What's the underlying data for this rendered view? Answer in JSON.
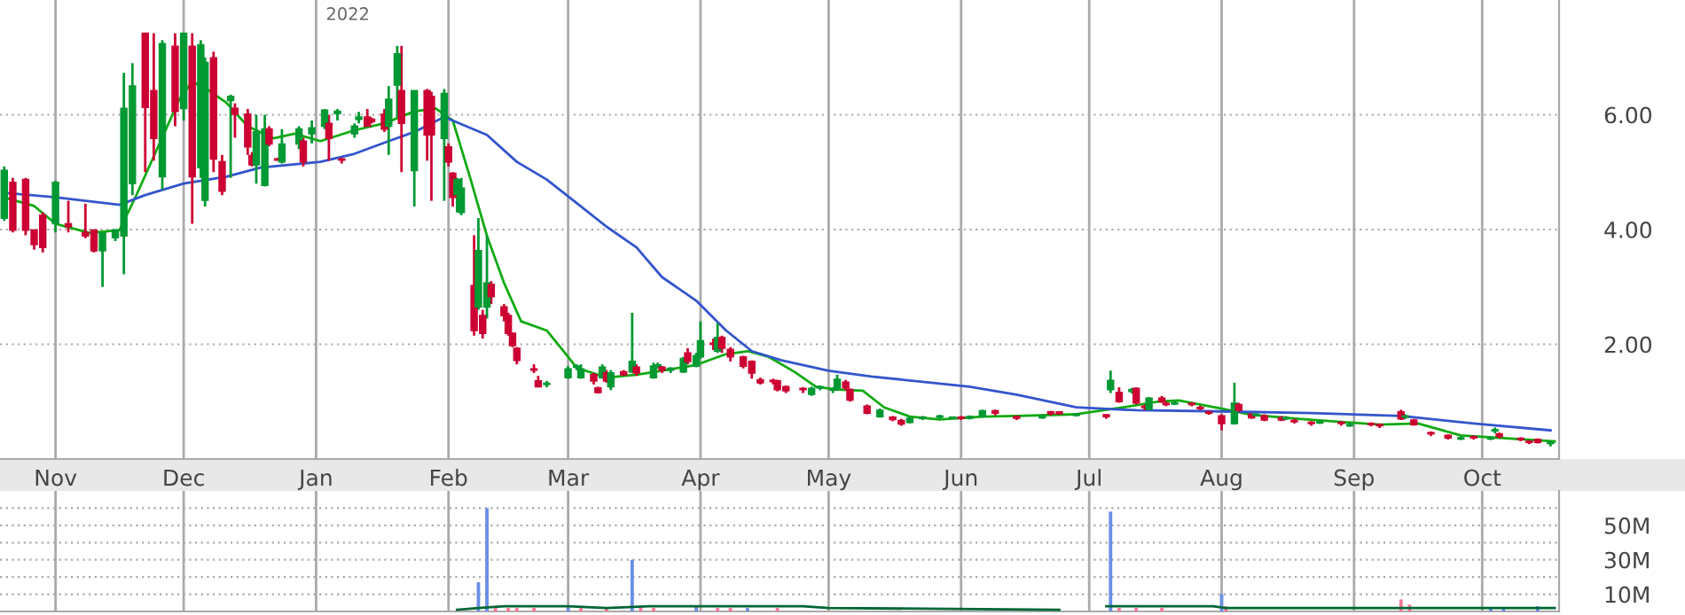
{
  "chart_data": [
    {
      "type": "candlestick",
      "annotations": [
        "2022"
      ],
      "xlim": [
        "2021-10-19",
        "2022-10-19"
      ],
      "xticks": [
        {
          "value": "2021-11-01",
          "label": "Nov"
        },
        {
          "value": "2021-12-01",
          "label": "Dec"
        },
        {
          "value": "2022-01-01",
          "label": "Jan"
        },
        {
          "value": "2022-02-01",
          "label": "Feb"
        },
        {
          "value": "2022-03-01",
          "label": "Mar"
        },
        {
          "value": "2022-04-01",
          "label": "Apr"
        },
        {
          "value": "2022-05-01",
          "label": "May"
        },
        {
          "value": "2022-06-01",
          "label": "Jun"
        },
        {
          "value": "2022-07-01",
          "label": "Jul"
        },
        {
          "value": "2022-08-01",
          "label": "Aug"
        },
        {
          "value": "2022-09-01",
          "label": "Sep"
        },
        {
          "value": "2022-10-01",
          "label": "Oct"
        }
      ],
      "ylim": [
        0,
        8
      ],
      "yticks": [
        {
          "value": 2,
          "label": "2.00"
        },
        {
          "value": 4,
          "label": "4.00"
        },
        {
          "value": 6,
          "label": "6.00"
        }
      ],
      "grid": true,
      "x": [
        "2021-10-20",
        "2021-10-22",
        "2021-10-25",
        "2021-10-27",
        "2021-10-29",
        "2021-11-01",
        "2021-11-04",
        "2021-11-08",
        "2021-11-10",
        "2021-11-12",
        "2021-11-15",
        "2021-11-17",
        "2021-11-19",
        "2021-11-22",
        "2021-11-24",
        "2021-11-26",
        "2021-11-29",
        "2021-12-01",
        "2021-12-03",
        "2021-12-05",
        "2021-12-06",
        "2021-12-08",
        "2021-12-10",
        "2021-12-12",
        "2021-12-13",
        "2021-12-16",
        "2021-12-17",
        "2021-12-18",
        "2021-12-20",
        "2021-12-21",
        "2021-12-23",
        "2021-12-24",
        "2021-12-28",
        "2021-12-29",
        "2021-12-31",
        "2022-01-03",
        "2022-01-04",
        "2022-01-06",
        "2022-01-07",
        "2022-01-10",
        "2022-01-11",
        "2022-01-13",
        "2022-01-14",
        "2022-01-17",
        "2022-01-18",
        "2022-01-20",
        "2022-01-21",
        "2022-01-24",
        "2022-01-27",
        "2022-01-28",
        "2022-01-31",
        "2022-02-01",
        "2022-02-02",
        "2022-02-03",
        "2022-02-04",
        "2022-02-07",
        "2022-02-08",
        "2022-02-09",
        "2022-02-10",
        "2022-02-11",
        "2022-02-14",
        "2022-02-15",
        "2022-02-16",
        "2022-02-17",
        "2022-02-21",
        "2022-02-22",
        "2022-02-24",
        "2022-03-01",
        "2022-03-03",
        "2022-03-04",
        "2022-03-07",
        "2022-03-08",
        "2022-03-09",
        "2022-03-10",
        "2022-03-11",
        "2022-03-14",
        "2022-03-16",
        "2022-03-17",
        "2022-03-21",
        "2022-03-22",
        "2022-03-23",
        "2022-03-25",
        "2022-03-28",
        "2022-03-29",
        "2022-03-31",
        "2022-04-01",
        "2022-04-04",
        "2022-04-05",
        "2022-04-06",
        "2022-04-08",
        "2022-04-11",
        "2022-04-13",
        "2022-04-15",
        "2022-04-18",
        "2022-04-19",
        "2022-04-21",
        "2022-04-25",
        "2022-04-27",
        "2022-04-29",
        "2022-05-02",
        "2022-05-03",
        "2022-05-05",
        "2022-05-06",
        "2022-05-10",
        "2022-05-13",
        "2022-05-16",
        "2022-05-18",
        "2022-05-20",
        "2022-05-23",
        "2022-05-27",
        "2022-05-30",
        "2022-06-01",
        "2022-06-03",
        "2022-06-06",
        "2022-06-09",
        "2022-06-14",
        "2022-06-20",
        "2022-06-22",
        "2022-06-24",
        "2022-06-28",
        "2022-07-05",
        "2022-07-06",
        "2022-07-08",
        "2022-07-11",
        "2022-07-12",
        "2022-07-14",
        "2022-07-15",
        "2022-07-18",
        "2022-07-19",
        "2022-07-21",
        "2022-07-25",
        "2022-07-27",
        "2022-07-29",
        "2022-08-01",
        "2022-08-04",
        "2022-08-05",
        "2022-08-08",
        "2022-08-09",
        "2022-08-11",
        "2022-08-15",
        "2022-08-16",
        "2022-08-18",
        "2022-08-22",
        "2022-08-24",
        "2022-08-29",
        "2022-08-31",
        "2022-09-05",
        "2022-09-07",
        "2022-09-12",
        "2022-09-13",
        "2022-09-15",
        "2022-09-19",
        "2022-09-23",
        "2022-09-26",
        "2022-09-29",
        "2022-10-03",
        "2022-10-04",
        "2022-10-05",
        "2022-10-10",
        "2022-10-12",
        "2022-10-14",
        "2022-10-17"
      ],
      "ohlc": [
        [
          4.2,
          5.1,
          4.15,
          5.03
        ],
        [
          4.82,
          4.9,
          3.95,
          3.99
        ],
        [
          4.87,
          4.9,
          3.9,
          3.99
        ],
        [
          3.99,
          4.0,
          3.65,
          3.74
        ],
        [
          4.25,
          4.3,
          3.6,
          3.69
        ],
        [
          4.1,
          4.85,
          3.95,
          4.82
        ],
        [
          4.1,
          4.5,
          3.95,
          4.05
        ],
        [
          3.95,
          4.45,
          3.85,
          3.89
        ],
        [
          3.99,
          4.0,
          3.6,
          3.63
        ],
        [
          3.63,
          3.95,
          3.0,
          3.94
        ],
        [
          3.86,
          4.0,
          3.8,
          3.99
        ],
        [
          3.89,
          6.73,
          3.22,
          6.11
        ],
        [
          4.8,
          6.9,
          4.6,
          6.5
        ],
        [
          7.42,
          7.42,
          5.0,
          6.13
        ],
        [
          6.42,
          7.42,
          5.2,
          5.59
        ],
        [
          4.92,
          7.3,
          4.7,
          7.24
        ],
        [
          7.19,
          7.42,
          5.8,
          6.06
        ],
        [
          6.11,
          7.42,
          5.9,
          7.42
        ],
        [
          7.19,
          7.42,
          4.1,
          4.92
        ],
        [
          5.08,
          7.3,
          4.9,
          7.22
        ],
        [
          4.51,
          7.0,
          4.4,
          6.91
        ],
        [
          6.99,
          7.1,
          5.0,
          5.23
        ],
        [
          5.18,
          5.3,
          4.6,
          4.67
        ],
        [
          6.25,
          6.35,
          4.9,
          6.32
        ],
        [
          6.11,
          6.2,
          5.6,
          6.01
        ],
        [
          6.01,
          6.1,
          5.3,
          5.44
        ],
        [
          5.29,
          5.35,
          5.1,
          5.13
        ],
        [
          5.13,
          6.0,
          4.8,
          5.7
        ],
        [
          4.77,
          6.0,
          4.75,
          5.75
        ],
        [
          5.75,
          5.8,
          5.45,
          5.49
        ],
        [
          5.22,
          5.25,
          5.2,
          5.21
        ],
        [
          5.18,
          5.75,
          5.15,
          5.49
        ],
        [
          5.49,
          5.8,
          5.4,
          5.75
        ],
        [
          5.54,
          5.6,
          5.1,
          5.18
        ],
        [
          5.67,
          5.9,
          5.5,
          5.77
        ],
        [
          5.8,
          6.1,
          5.75,
          6.08
        ],
        [
          5.85,
          6.0,
          5.2,
          5.59
        ],
        [
          6.02,
          6.1,
          5.9,
          6.06
        ],
        [
          5.23,
          5.25,
          5.15,
          5.21
        ],
        [
          5.67,
          5.85,
          5.6,
          5.8
        ],
        [
          5.92,
          6.05,
          5.85,
          5.96
        ],
        [
          5.96,
          6.1,
          5.8,
          5.8
        ],
        [
          5.92,
          5.95,
          5.85,
          5.88
        ],
        [
          6.01,
          6.1,
          5.7,
          5.75
        ],
        [
          5.8,
          6.5,
          5.3,
          6.27
        ],
        [
          6.52,
          7.2,
          5.95,
          7.06
        ],
        [
          6.42,
          7.2,
          5.0,
          5.85
        ],
        [
          5.03,
          6.42,
          4.4,
          6.42
        ],
        [
          6.42,
          6.45,
          5.2,
          5.65
        ],
        [
          6.32,
          6.4,
          4.5,
          5.65
        ],
        [
          5.59,
          6.45,
          4.5,
          6.37
        ],
        [
          5.44,
          5.5,
          5.1,
          5.18
        ],
        [
          4.98,
          5.0,
          4.4,
          4.56
        ],
        [
          4.61,
          4.9,
          4.3,
          4.87
        ],
        [
          4.3,
          4.9,
          4.25,
          4.72
        ],
        [
          3.02,
          3.9,
          2.15,
          2.24
        ],
        [
          2.65,
          4.2,
          2.6,
          3.63
        ],
        [
          2.5,
          2.6,
          2.1,
          2.19
        ],
        [
          2.65,
          3.9,
          2.45,
          3.07
        ],
        [
          3.04,
          3.1,
          2.7,
          2.83
        ],
        [
          2.65,
          2.7,
          2.4,
          2.5
        ],
        [
          2.5,
          2.55,
          2.15,
          2.19
        ],
        [
          2.19,
          2.2,
          1.95,
          1.98
        ],
        [
          1.93,
          1.95,
          1.65,
          1.72
        ],
        [
          1.57,
          1.65,
          1.5,
          1.55
        ],
        [
          1.36,
          1.45,
          1.25,
          1.26
        ],
        [
          1.3,
          1.36,
          1.25,
          1.32
        ],
        [
          1.42,
          1.62,
          1.4,
          1.57
        ],
        [
          1.6,
          1.65,
          1.55,
          1.62
        ],
        [
          1.42,
          1.65,
          1.4,
          1.57
        ],
        [
          1.47,
          1.5,
          1.3,
          1.36
        ],
        [
          1.24,
          1.26,
          1.14,
          1.16
        ],
        [
          1.42,
          1.65,
          1.4,
          1.6
        ],
        [
          1.5,
          1.55,
          1.33,
          1.36
        ],
        [
          1.26,
          1.55,
          1.2,
          1.5
        ],
        [
          1.52,
          1.55,
          1.45,
          1.47
        ],
        [
          1.52,
          2.55,
          1.5,
          1.7
        ],
        [
          1.6,
          1.65,
          1.45,
          1.5
        ],
        [
          1.42,
          1.68,
          1.4,
          1.62
        ],
        [
          1.6,
          1.68,
          1.58,
          1.64
        ],
        [
          1.6,
          1.62,
          1.5,
          1.55
        ],
        [
          1.55,
          1.6,
          1.5,
          1.58
        ],
        [
          1.52,
          1.78,
          1.5,
          1.75
        ],
        [
          1.85,
          1.93,
          1.65,
          1.7
        ],
        [
          1.62,
          1.85,
          1.6,
          1.8
        ],
        [
          1.78,
          2.4,
          1.75,
          2.06
        ],
        [
          2.02,
          2.1,
          1.9,
          2.0
        ],
        [
          1.88,
          2.37,
          1.85,
          2.12
        ],
        [
          2.12,
          2.15,
          1.85,
          1.93
        ],
        [
          1.91,
          1.95,
          1.7,
          1.78
        ],
        [
          1.78,
          1.8,
          1.58,
          1.62
        ],
        [
          1.7,
          1.72,
          1.4,
          1.5
        ],
        [
          1.38,
          1.42,
          1.3,
          1.33
        ],
        [
          1.37,
          1.4,
          1.3,
          1.35
        ],
        [
          1.36,
          1.38,
          1.18,
          1.21
        ],
        [
          1.26,
          1.28,
          1.15,
          1.19
        ],
        [
          1.22,
          1.25,
          1.15,
          1.21
        ],
        [
          1.13,
          1.26,
          1.1,
          1.23
        ],
        [
          1.24,
          1.28,
          1.2,
          1.25
        ],
        [
          1.2,
          1.25,
          1.15,
          1.22
        ],
        [
          1.23,
          1.47,
          1.2,
          1.39
        ],
        [
          1.34,
          1.38,
          1.2,
          1.24
        ],
        [
          1.21,
          1.23,
          1.0,
          1.03
        ],
        [
          0.92,
          0.95,
          0.78,
          0.8
        ],
        [
          0.74,
          0.88,
          0.72,
          0.85
        ],
        [
          0.73,
          0.75,
          0.66,
          0.69
        ],
        [
          0.67,
          0.7,
          0.58,
          0.61
        ],
        [
          0.64,
          0.73,
          0.62,
          0.71
        ],
        [
          0.71,
          0.75,
          0.68,
          0.73
        ],
        [
          0.73,
          0.77,
          0.7,
          0.75
        ],
        [
          0.71,
          0.74,
          0.69,
          0.73
        ],
        [
          0.73,
          0.75,
          0.68,
          0.71
        ],
        [
          0.71,
          0.76,
          0.69,
          0.74
        ],
        [
          0.74,
          0.86,
          0.72,
          0.84
        ],
        [
          0.84,
          0.86,
          0.76,
          0.8
        ],
        [
          0.74,
          0.76,
          0.68,
          0.71
        ],
        [
          0.72,
          0.78,
          0.7,
          0.75
        ],
        [
          0.82,
          0.84,
          0.76,
          0.79
        ],
        [
          0.82,
          0.83,
          0.77,
          0.79
        ],
        [
          0.76,
          0.8,
          0.74,
          0.79
        ],
        [
          0.77,
          0.78,
          0.7,
          0.74
        ],
        [
          1.21,
          1.54,
          1.15,
          1.37
        ],
        [
          1.16,
          1.25,
          0.98,
          1.0
        ],
        [
          1.18,
          1.24,
          1.14,
          1.21
        ],
        [
          1.23,
          1.25,
          0.95,
          0.98
        ],
        [
          0.91,
          0.95,
          0.85,
          0.9
        ],
        [
          0.87,
          1.08,
          0.85,
          1.06
        ],
        [
          1.06,
          1.1,
          0.98,
          1.0
        ],
        [
          0.97,
          1.0,
          0.92,
          0.95
        ],
        [
          0.96,
          1.02,
          0.94,
          0.98
        ],
        [
          0.97,
          0.99,
          0.92,
          0.95
        ],
        [
          0.9,
          0.93,
          0.85,
          0.88
        ],
        [
          0.82,
          0.84,
          0.77,
          0.8
        ],
        [
          0.75,
          0.78,
          0.5,
          0.62
        ],
        [
          0.62,
          1.33,
          0.6,
          0.97
        ],
        [
          0.95,
          0.98,
          0.82,
          0.85
        ],
        [
          0.78,
          0.8,
          0.7,
          0.72
        ],
        [
          0.76,
          0.8,
          0.74,
          0.78
        ],
        [
          0.75,
          0.78,
          0.66,
          0.68
        ],
        [
          0.72,
          0.75,
          0.66,
          0.68
        ],
        [
          0.7,
          0.75,
          0.68,
          0.72
        ],
        [
          0.67,
          0.7,
          0.62,
          0.65
        ],
        [
          0.64,
          0.66,
          0.58,
          0.62
        ],
        [
          0.63,
          0.68,
          0.61,
          0.65
        ],
        [
          0.64,
          0.66,
          0.58,
          0.62
        ],
        [
          0.58,
          0.64,
          0.56,
          0.6
        ],
        [
          0.62,
          0.64,
          0.57,
          0.6
        ],
        [
          0.6,
          0.62,
          0.54,
          0.58
        ],
        [
          0.82,
          0.86,
          0.68,
          0.7
        ],
        [
          0.73,
          0.78,
          0.7,
          0.75
        ],
        [
          0.68,
          0.7,
          0.58,
          0.6
        ],
        [
          0.46,
          0.48,
          0.4,
          0.44
        ],
        [
          0.41,
          0.43,
          0.34,
          0.37
        ],
        [
          0.35,
          0.4,
          0.33,
          0.37
        ],
        [
          0.39,
          0.41,
          0.34,
          0.37
        ],
        [
          0.35,
          0.4,
          0.33,
          0.37
        ],
        [
          0.49,
          0.55,
          0.45,
          0.5
        ],
        [
          0.44,
          0.46,
          0.36,
          0.39
        ],
        [
          0.36,
          0.38,
          0.31,
          0.34
        ],
        [
          0.31,
          0.33,
          0.26,
          0.29
        ],
        [
          0.34,
          0.36,
          0.27,
          0.29
        ],
        [
          0.27,
          0.32,
          0.22,
          0.29
        ]
      ],
      "series": [
        {
          "type": "line",
          "color": "#11aa11",
          "x": [
            "2021-10-20",
            "2021-10-27",
            "2021-11-01",
            "2021-11-09",
            "2021-11-16",
            "2021-11-20",
            "2021-11-25",
            "2021-11-30",
            "2021-12-03",
            "2021-12-07",
            "2021-12-11",
            "2021-12-16",
            "2021-12-22",
            "2021-12-27",
            "2022-01-02",
            "2022-01-10",
            "2022-01-17",
            "2022-01-24",
            "2022-01-29",
            "2022-02-02",
            "2022-02-06",
            "2022-02-10",
            "2022-02-14",
            "2022-02-18",
            "2022-02-24",
            "2022-03-01",
            "2022-03-03",
            "2022-03-10",
            "2022-03-17",
            "2022-03-23",
            "2022-03-31",
            "2022-04-07",
            "2022-04-12",
            "2022-04-17",
            "2022-04-23",
            "2022-04-28",
            "2022-05-03",
            "2022-05-09",
            "2022-05-14",
            "2022-05-20",
            "2022-05-27",
            "2022-06-06",
            "2022-06-14",
            "2022-06-28",
            "2022-07-09",
            "2022-07-17",
            "2022-07-22",
            "2022-08-01",
            "2022-08-08",
            "2022-08-19",
            "2022-09-07",
            "2022-09-16",
            "2022-09-26",
            "2022-10-05",
            "2022-10-18"
          ],
          "values": [
            4.56,
            4.41,
            4.1,
            3.94,
            3.99,
            4.61,
            5.44,
            6.27,
            6.58,
            6.42,
            6.21,
            5.8,
            5.59,
            5.67,
            5.54,
            5.73,
            5.85,
            6.06,
            6.11,
            5.9,
            4.92,
            3.89,
            3.07,
            2.4,
            2.24,
            1.78,
            1.59,
            1.42,
            1.47,
            1.54,
            1.64,
            1.83,
            1.88,
            1.78,
            1.52,
            1.26,
            1.21,
            1.19,
            0.9,
            0.74,
            0.69,
            0.74,
            0.75,
            0.78,
            0.9,
            1.0,
            1.02,
            0.88,
            0.77,
            0.7,
            0.6,
            0.62,
            0.41,
            0.37,
            0.31
          ]
        },
        {
          "type": "line",
          "color": "#3355cc",
          "x": [
            "2021-10-20",
            "2021-11-01",
            "2021-11-16",
            "2021-11-22",
            "2021-12-01",
            "2021-12-11",
            "2021-12-19",
            "2022-01-02",
            "2022-01-10",
            "2022-01-18",
            "2022-01-24",
            "2022-01-31",
            "2022-02-10",
            "2022-02-17",
            "2022-02-24",
            "2022-03-03",
            "2022-03-10",
            "2022-03-17",
            "2022-03-23",
            "2022-03-31",
            "2022-04-07",
            "2022-04-13",
            "2022-04-20",
            "2022-05-01",
            "2022-05-11",
            "2022-05-25",
            "2022-06-03",
            "2022-06-14",
            "2022-06-28",
            "2022-07-12",
            "2022-08-01",
            "2022-08-22",
            "2022-09-12",
            "2022-09-29",
            "2022-10-17"
          ],
          "values": [
            4.64,
            4.56,
            4.43,
            4.6,
            4.8,
            4.92,
            5.08,
            5.18,
            5.32,
            5.54,
            5.7,
            5.96,
            5.65,
            5.18,
            4.87,
            4.46,
            4.05,
            3.69,
            3.17,
            2.76,
            2.24,
            1.88,
            1.72,
            1.54,
            1.44,
            1.33,
            1.26,
            1.12,
            0.9,
            0.85,
            0.83,
            0.8,
            0.75,
            0.62,
            0.5
          ]
        }
      ]
    },
    {
      "type": "bar",
      "tick_labels": "y",
      "grid": true,
      "xlim": [
        "2021-10-19",
        "2022-10-19"
      ],
      "xticks": [
        {
          "value": "2021-11-01",
          "label": null
        },
        {
          "value": "2021-12-01",
          "label": null
        },
        {
          "value": "2022-01-01",
          "label": null
        },
        {
          "value": "2022-02-01",
          "label": null
        },
        {
          "value": "2022-03-01",
          "label": null
        },
        {
          "value": "2022-04-01",
          "label": null
        },
        {
          "value": "2022-05-01",
          "label": null
        },
        {
          "value": "2022-06-01",
          "label": null
        },
        {
          "value": "2022-07-01",
          "label": null
        },
        {
          "value": "2022-08-01",
          "label": null
        },
        {
          "value": "2022-09-01",
          "label": null
        },
        {
          "value": "2022-10-01",
          "label": null
        }
      ],
      "ylim": [
        0,
        70
      ],
      "yticks": [
        {
          "value": 10,
          "label": "10M"
        },
        {
          "value": 20,
          "label": null
        },
        {
          "value": 30,
          "label": "30M"
        },
        {
          "value": 40,
          "label": null
        },
        {
          "value": 50,
          "label": "50M"
        },
        {
          "value": 60,
          "label": null
        }
      ],
      "series": [
        {
          "type": "bar",
          "x": [
            "2022-02-08",
            "2022-02-10",
            "2022-02-12",
            "2022-02-15",
            "2022-02-17",
            "2022-02-21",
            "2022-03-01",
            "2022-03-04",
            "2022-03-10",
            "2022-03-16",
            "2022-03-18",
            "2022-03-21",
            "2022-03-31",
            "2022-04-05",
            "2022-04-08",
            "2022-04-12",
            "2022-04-19",
            "2022-07-06",
            "2022-07-08",
            "2022-07-12",
            "2022-07-18",
            "2022-08-01",
            "2022-08-02",
            "2022-09-12",
            "2022-09-14",
            "2022-10-03",
            "2022-10-06",
            "2022-10-14"
          ],
          "values": [
            17,
            60,
            2,
            2,
            2,
            2,
            3,
            2,
            2,
            30,
            2,
            2,
            3,
            2,
            2,
            2,
            2,
            58,
            2,
            2,
            2,
            10,
            3,
            7,
            4,
            2,
            2,
            3
          ],
          "colors": [
            "#6b8fe6",
            "#6b8fe6",
            "#ff7799",
            "#ff7799",
            "#ff7799",
            "#ff7799",
            "#6b8fe6",
            "#ff7799",
            "#ff7799",
            "#6b8fe6",
            "#ff7799",
            "#ff7799",
            "#6b8fe6",
            "#ff7799",
            "#ff7799",
            "#6b8fe6",
            "#ff7799",
            "#6b8fe6",
            "#ff7799",
            "#ff7799",
            "#ff7799",
            "#6b8fe6",
            "#ff7799",
            "#ff7799",
            "#ff7799",
            "#6b8fe6",
            "#6b8fe6",
            "#6b8fe6"
          ]
        },
        {
          "type": "line",
          "color": "#006633",
          "x": [
            "2022-02-03",
            "2022-02-08",
            "2022-02-14",
            "2022-03-01",
            "2022-03-10",
            "2022-03-20",
            "2022-04-10",
            "2022-04-25",
            "2022-05-01",
            "2022-06-24",
            "2022-06-28",
            "2022-07-05",
            "2022-07-30",
            "2022-08-02",
            "2022-08-20",
            "2022-10-18"
          ],
          "values": [
            1,
            2,
            3,
            3,
            2,
            3,
            3,
            3,
            2,
            1,
            null,
            3,
            3,
            2,
            2,
            2
          ]
        }
      ]
    }
  ]
}
